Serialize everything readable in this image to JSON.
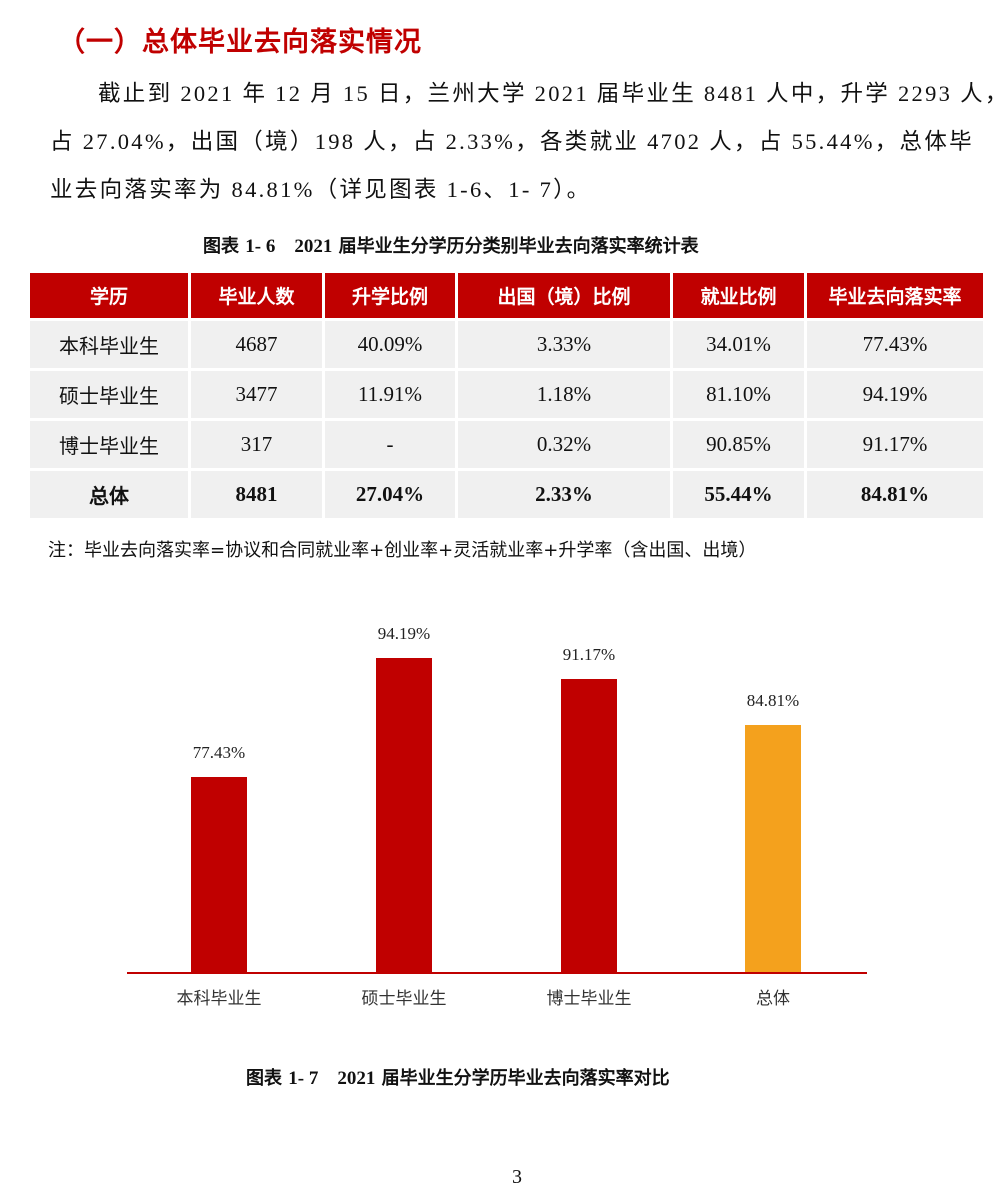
{
  "section_title": "（一）总体毕业去向落实情况",
  "paragraph": {
    "line1": "截止到 2021 年 12 月 15 日，兰州大学 2021 届毕业生 8481 人中，升学 2293 人，",
    "line2": "占 27.04%，出国（境）198 人，占 2.33%，各类就业 4702 人，占 55.44%，总体毕",
    "line3": "业去向落实率为 84.81%（详见图表 1-6、1- 7）。"
  },
  "table_caption": {
    "prefix": "图表",
    "num": "1- 6    2021",
    "title": "届毕业生分学历分类别毕业去向落实率统计表"
  },
  "table": {
    "headers": [
      "学历",
      "毕业人数",
      "升学比例",
      "出国（境）比例",
      "就业比例",
      "毕业去向落实率"
    ],
    "rows": [
      [
        "本科毕业生",
        "4687",
        "40.09%",
        "3.33%",
        "34.01%",
        "77.43%"
      ],
      [
        "硕士毕业生",
        "3477",
        "11.91%",
        "1.18%",
        "81.10%",
        "94.19%"
      ],
      [
        "博士毕业生",
        "317",
        "-",
        "0.32%",
        "90.85%",
        "91.17%"
      ],
      [
        "总体",
        "8481",
        "27.04%",
        "2.33%",
        "55.44%",
        "84.81%"
      ]
    ]
  },
  "note": "注：毕业去向落实率=协议和合同就业率+创业率+灵活就业率+升学率（含出国、出境）",
  "chart_caption": {
    "prefix": "图表",
    "num": "1- 7    2021",
    "title": "届毕业生分学历毕业去向落实率对比"
  },
  "colors": {
    "primary_red": "#c00000",
    "total_orange": "#f4a11d",
    "cell_gray": "#f0f0f0"
  },
  "chart_data": {
    "type": "bar",
    "title": "2021 届毕业生分学历毕业去向落实率对比",
    "categories": [
      "本科毕业生",
      "硕士毕业生",
      "博士毕业生",
      "总体"
    ],
    "values": [
      77.43,
      94.19,
      91.17,
      84.81
    ],
    "value_labels": [
      "77.43%",
      "94.19%",
      "91.17%",
      "84.81%"
    ],
    "bar_colors": [
      "#c00000",
      "#c00000",
      "#c00000",
      "#f4a11d"
    ],
    "xlabel": "",
    "ylabel": "",
    "ylim": [
      40,
      100
    ],
    "grid": false,
    "legend": false
  },
  "page_number": "3"
}
